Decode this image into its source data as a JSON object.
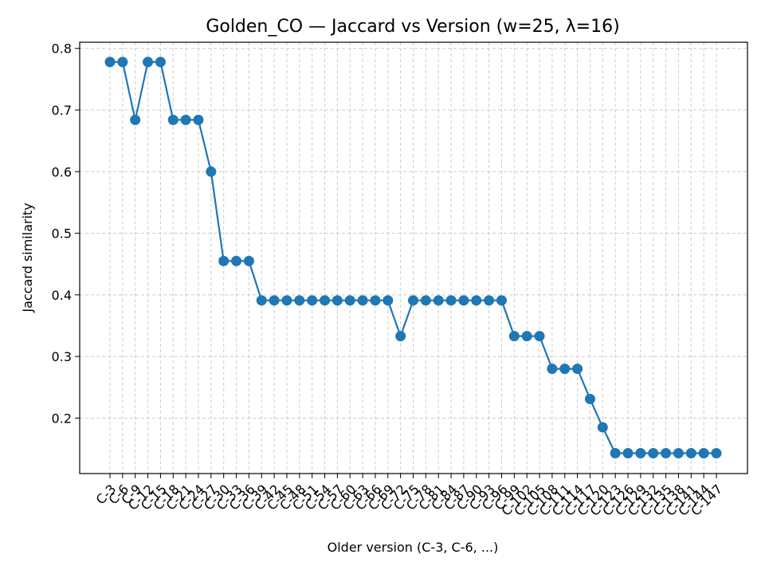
{
  "chart_data": {
    "type": "line",
    "title": "Golden_CO — Jaccard vs Version (w=25, λ=16)",
    "xlabel": "Older version (C-3, C-6, ...)",
    "ylabel": "Jaccard similarity",
    "ylim": [
      0.11,
      0.81
    ],
    "yticks": [
      "0.2",
      "0.3",
      "0.4",
      "0.5",
      "0.6",
      "0.7",
      "0.8"
    ],
    "grid": true,
    "series_color": "#1f77b4",
    "categories": [
      "C-3",
      "C-6",
      "C-9",
      "C-12",
      "C-15",
      "C-18",
      "C-21",
      "C-24",
      "C-27",
      "C-30",
      "C-33",
      "C-36",
      "C-39",
      "C-42",
      "C-45",
      "C-48",
      "C-51",
      "C-54",
      "C-57",
      "C-60",
      "C-63",
      "C-66",
      "C-69",
      "C-72",
      "C-75",
      "C-78",
      "C-81",
      "C-84",
      "C-87",
      "C-90",
      "C-93",
      "C-96",
      "C-99",
      "C-102",
      "C-105",
      "C-108",
      "C-111",
      "C-114",
      "C-117",
      "C-120",
      "C-123",
      "C-126",
      "C-129",
      "C-132",
      "C-135",
      "C-138",
      "C-141",
      "C-144",
      "C-147"
    ],
    "values": [
      0.778,
      0.778,
      0.684,
      0.778,
      0.778,
      0.684,
      0.684,
      0.684,
      0.6,
      0.455,
      0.455,
      0.455,
      0.391,
      0.391,
      0.391,
      0.391,
      0.391,
      0.391,
      0.391,
      0.391,
      0.391,
      0.391,
      0.391,
      0.333,
      0.391,
      0.391,
      0.391,
      0.391,
      0.391,
      0.391,
      0.391,
      0.391,
      0.333,
      0.333,
      0.333,
      0.28,
      0.28,
      0.28,
      0.231,
      0.185,
      0.143,
      0.143,
      0.143,
      0.143,
      0.143,
      0.143,
      0.143,
      0.143,
      0.143
    ]
  }
}
